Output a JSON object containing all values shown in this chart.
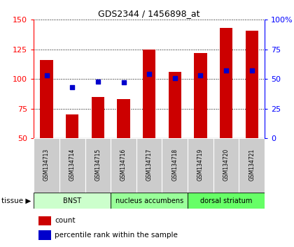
{
  "title": "GDS2344 / 1456898_at",
  "samples": [
    "GSM134713",
    "GSM134714",
    "GSM134715",
    "GSM134716",
    "GSM134717",
    "GSM134718",
    "GSM134719",
    "GSM134720",
    "GSM134721"
  ],
  "counts": [
    116,
    70,
    85,
    83,
    125,
    106,
    122,
    143,
    141
  ],
  "percentile_ranks": [
    53,
    43,
    48,
    47,
    54,
    51,
    53,
    57,
    57
  ],
  "ylim_left": [
    50,
    150
  ],
  "ylim_right": [
    0,
    100
  ],
  "yticks_left": [
    50,
    75,
    100,
    125,
    150
  ],
  "yticks_right": [
    0,
    25,
    50,
    75,
    100
  ],
  "ytick_labels_right": [
    "0",
    "25",
    "50",
    "75",
    "100%"
  ],
  "groups": [
    {
      "label": "BNST",
      "start": 0,
      "end": 3,
      "color": "#ccffcc"
    },
    {
      "label": "nucleus accumbens",
      "start": 3,
      "end": 6,
      "color": "#99ff99"
    },
    {
      "label": "dorsal striatum",
      "start": 6,
      "end": 9,
      "color": "#66ff66"
    }
  ],
  "bar_color": "#cc0000",
  "dot_color": "#0000cc",
  "bar_width": 0.5,
  "background_color": "#ffffff",
  "sample_bg_color": "#cccccc",
  "tissue_label": "tissue",
  "legend_count_label": "count",
  "legend_pct_label": "percentile rank within the sample"
}
